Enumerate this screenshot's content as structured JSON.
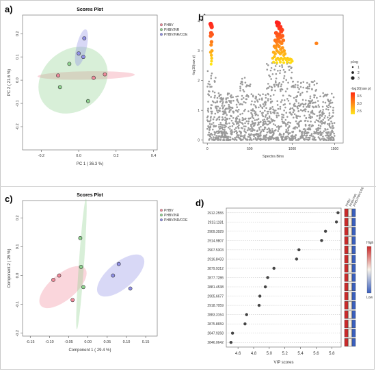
{
  "panel_labels": {
    "a": "a)",
    "b": "b)",
    "c": "c)",
    "d": "d)"
  },
  "colors": {
    "phbv": "#f08a9a",
    "phbv_nr": "#8ed28e",
    "phbv_nr_coe": "#8f8fe6",
    "grey_point": "#9a9a9a",
    "vip_high": "#cc2a2a",
    "vip_low": "#3a5fbf"
  },
  "chart_data": [
    {
      "type": "scatter",
      "title": "Scores Plot",
      "xlabel": "PC 1 ( 36.3 %)",
      "ylabel": "PC 2 ( 21.6 %)",
      "xlim": [
        -0.3,
        0.42
      ],
      "ylim": [
        -0.3,
        0.28
      ],
      "xticks": [
        -0.2,
        0.0,
        0.2,
        0.4
      ],
      "yticks": [
        -0.2,
        -0.1,
        0.0,
        0.1,
        0.2
      ],
      "xtick_labels": [
        "-0.2",
        "0.0",
        "0.2",
        "0.4"
      ],
      "ytick_labels": [
        "-0.2",
        "-0.1",
        "0.0",
        "0.1",
        "0.2"
      ],
      "legend_position": "top-right",
      "series": [
        {
          "name": "PHBV",
          "color_key": "phbv",
          "points": [
            [
              -0.11,
              0.02
            ],
            [
              0.08,
              0.01
            ],
            [
              0.14,
              0.025
            ]
          ],
          "ellipse": {
            "cx": 0.04,
            "cy": 0.02,
            "rx": 0.26,
            "ry": 0.018,
            "angle": -1
          }
        },
        {
          "name": "PHBV/NR",
          "color_key": "phbv_nr",
          "points": [
            [
              -0.05,
              0.07
            ],
            [
              -0.1,
              -0.03
            ],
            [
              0.05,
              -0.09
            ]
          ],
          "ellipse": {
            "cx": -0.03,
            "cy": 0.0,
            "rx": 0.2,
            "ry": 0.13,
            "angle": -40
          }
        },
        {
          "name": "PHBV/NR/COE",
          "color_key": "phbv_nr_coe",
          "points": [
            [
              0.03,
              0.18
            ],
            [
              0.0,
              0.115
            ],
            [
              0.025,
              0.1
            ]
          ],
          "ellipse": {
            "cx": 0.015,
            "cy": 0.14,
            "rx": 0.1,
            "ry": 0.022,
            "angle": -77
          }
        }
      ]
    },
    {
      "type": "scatter",
      "title": "",
      "xlabel": "Spectra Bins",
      "ylabel": "-log10(raw p)",
      "xlim": [
        -50,
        1600
      ],
      "ylim": [
        -0.1,
        4.2
      ],
      "xticks": [
        0,
        500,
        1000,
        1500
      ],
      "yticks": [
        0,
        1,
        2,
        3,
        4
      ],
      "xtick_labels": [
        "0",
        "500",
        "1000",
        "1500"
      ],
      "ytick_labels": [
        "0",
        "1",
        "2",
        "3",
        "4"
      ],
      "legend_position": "right",
      "size_legend_title": "p.log",
      "size_legend_labels": [
        "1",
        "2",
        "3"
      ],
      "color_legend_title": "-log10(raw p)",
      "color_legend_labels": [
        "3.5",
        "3.0",
        "2.5"
      ],
      "highlight_points": [
        [
          40,
          3.9
        ],
        [
          48,
          3.85
        ],
        [
          52,
          3.8
        ],
        [
          45,
          3.6
        ],
        [
          55,
          3.55
        ],
        [
          40,
          3.5
        ],
        [
          50,
          3.3
        ],
        [
          45,
          3.2
        ],
        [
          55,
          3.0
        ],
        [
          40,
          2.95
        ],
        [
          48,
          2.85
        ],
        [
          52,
          2.75
        ],
        [
          50,
          2.65
        ],
        [
          45,
          2.55
        ],
        [
          1285,
          3.25
        ],
        [
          820,
          3.95
        ],
        [
          830,
          3.85
        ],
        [
          840,
          3.92
        ],
        [
          850,
          3.75
        ],
        [
          860,
          3.8
        ],
        [
          870,
          3.65
        ],
        [
          880,
          3.7
        ],
        [
          810,
          3.6
        ],
        [
          825,
          3.5
        ],
        [
          845,
          3.55
        ],
        [
          865,
          3.45
        ],
        [
          885,
          3.5
        ],
        [
          800,
          3.35
        ],
        [
          815,
          3.3
        ],
        [
          835,
          3.4
        ],
        [
          855,
          3.3
        ],
        [
          875,
          3.25
        ],
        [
          895,
          3.35
        ],
        [
          790,
          3.15
        ],
        [
          805,
          3.1
        ],
        [
          825,
          3.2
        ],
        [
          845,
          3.15
        ],
        [
          865,
          3.05
        ],
        [
          885,
          3.1
        ],
        [
          905,
          3.0
        ],
        [
          780,
          2.95
        ],
        [
          800,
          2.9
        ],
        [
          820,
          3.0
        ],
        [
          840,
          2.95
        ],
        [
          860,
          2.9
        ],
        [
          880,
          2.95
        ],
        [
          900,
          2.85
        ],
        [
          915,
          2.9
        ],
        [
          770,
          2.75
        ],
        [
          790,
          2.8
        ],
        [
          810,
          2.7
        ],
        [
          830,
          2.75
        ],
        [
          850,
          2.7
        ],
        [
          870,
          2.75
        ],
        [
          890,
          2.7
        ],
        [
          910,
          2.75
        ],
        [
          930,
          2.7
        ],
        [
          945,
          2.75
        ],
        [
          960,
          2.7
        ],
        [
          975,
          2.72
        ],
        [
          990,
          2.7
        ],
        [
          780,
          2.62
        ],
        [
          820,
          2.6
        ],
        [
          860,
          2.62
        ],
        [
          900,
          2.6
        ],
        [
          940,
          2.62
        ],
        [
          980,
          2.6
        ],
        [
          1000,
          2.65
        ]
      ],
      "background_points_note_count": 1300
    },
    {
      "type": "scatter",
      "title": "Scores Plot",
      "xlabel": "Component 1 ( 29.4 %)",
      "ylabel": "Component 2 ( 26 %)",
      "xlim": [
        -0.17,
        0.18
      ],
      "ylim": [
        -0.21,
        0.26
      ],
      "xticks": [
        -0.15,
        -0.1,
        -0.05,
        0.0,
        0.05,
        0.1,
        0.15
      ],
      "yticks": [
        -0.2,
        -0.1,
        0.0,
        0.1,
        0.2
      ],
      "xtick_labels": [
        "-0.15",
        "-0.10",
        "-0.05",
        "0.00",
        "0.05",
        "0.10",
        "0.15"
      ],
      "ytick_labels": [
        "-0.2",
        "-0.1",
        "0.0",
        "0.1",
        "0.2"
      ],
      "legend_position": "top-right",
      "series": [
        {
          "name": "PHBV",
          "color_key": "phbv",
          "points": [
            [
              -0.09,
              -0.015
            ],
            [
              -0.075,
              0.0
            ],
            [
              -0.04,
              -0.085
            ]
          ],
          "ellipse": {
            "cx": -0.065,
            "cy": -0.04,
            "rx": 0.075,
            "ry": 0.045,
            "angle": -40
          }
        },
        {
          "name": "PHBV/NR",
          "color_key": "phbv_nr",
          "points": [
            [
              -0.02,
              0.13
            ],
            [
              -0.018,
              0.03
            ],
            [
              -0.012,
              -0.04
            ]
          ],
          "ellipse": {
            "cx": -0.017,
            "cy": 0.04,
            "rx": 0.17,
            "ry": 0.009,
            "angle": -86
          }
        },
        {
          "name": "PHBV/NR/COE",
          "color_key": "phbv_nr_coe",
          "points": [
            [
              0.065,
              0.0
            ],
            [
              0.08,
              0.04
            ],
            [
              0.11,
              -0.045
            ]
          ],
          "ellipse": {
            "cx": 0.085,
            "cy": 0.0,
            "rx": 0.075,
            "ry": 0.045,
            "angle": -40
          }
        }
      ]
    },
    {
      "type": "scatter",
      "title": "",
      "xlabel": "VIP scores",
      "ylabel": "",
      "xlim": [
        4.45,
        5.92
      ],
      "xticks": [
        4.6,
        4.8,
        5.0,
        5.2,
        5.4,
        5.6,
        5.8
      ],
      "xtick_labels": [
        "4.6",
        "4.8",
        "5.0",
        "5.2",
        "5.4",
        "5.6",
        "5.8"
      ],
      "group_labels": [
        "PHBV",
        "PHBV/NR",
        "PHBV/NR/COE"
      ],
      "colorbar_labels": {
        "high": "High",
        "low": "Low"
      },
      "features": [
        "2912.2555",
        "2913.1181",
        "2909.3929",
        "2914.9807",
        "2907.5303",
        "2916.8433",
        "2879.9312",
        "2877.7286",
        "2881.4538",
        "2905.6677",
        "2918.7059",
        "2883.3164",
        "2875.8659",
        "2847.9268",
        "2846.0642"
      ],
      "values": [
        5.88,
        5.86,
        5.72,
        5.67,
        5.38,
        5.35,
        5.06,
        4.98,
        4.95,
        4.88,
        4.87,
        4.71,
        4.69,
        4.53,
        4.51
      ],
      "heat": [
        [
          "high",
          "mid",
          "low"
        ],
        [
          "high",
          "mid",
          "low"
        ],
        [
          "high",
          "mid",
          "low"
        ],
        [
          "high",
          "mid",
          "low"
        ],
        [
          "high",
          "mid",
          "low"
        ],
        [
          "high",
          "mid",
          "low"
        ],
        [
          "high",
          "mid",
          "low"
        ],
        [
          "high",
          "mid",
          "low"
        ],
        [
          "high",
          "mid",
          "low"
        ],
        [
          "high",
          "mid",
          "low"
        ],
        [
          "high",
          "mid",
          "low"
        ],
        [
          "high",
          "mid",
          "low"
        ],
        [
          "high",
          "mid",
          "low"
        ],
        [
          "high",
          "mid",
          "low"
        ],
        [
          "high",
          "mid",
          "low"
        ]
      ]
    }
  ]
}
